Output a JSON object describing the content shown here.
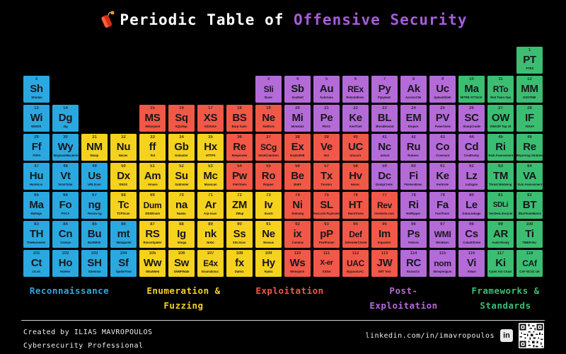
{
  "title": {
    "prefix": "Periodic Table of ",
    "accent": "Offensive Security",
    "icon": "firecracker-icon"
  },
  "colors": {
    "background": "#000000",
    "tile_text": "#17171c",
    "title_text": "#ffffff",
    "title_accent": "#a65cd9",
    "recon": "#2aa9e0",
    "enum": "#f5d21e",
    "exploit": "#f25847",
    "postex": "#b46bd8",
    "frameworks": "#3bbe72",
    "footer_text": "#efefef",
    "rule": "#cfcfcf"
  },
  "categories": [
    {
      "key": "recon",
      "label": "Reconnaissance",
      "lines": [
        "Reconnaissance"
      ]
    },
    {
      "key": "enum",
      "label": "Enumeration & Fuzzing",
      "lines": [
        "Enumeration &",
        "Fuzzing"
      ]
    },
    {
      "key": "exploit",
      "label": "Exploitation",
      "lines": [
        "Exploitation"
      ]
    },
    {
      "key": "postex",
      "label": "Post-Exploitation",
      "lines": [
        "Post-",
        "Exploitation"
      ]
    },
    {
      "key": "frameworks",
      "label": "Frameworks & Standards",
      "lines": [
        "Frameworks &",
        "Standards"
      ]
    }
  ],
  "elements": [
    {
      "n": 1,
      "sym": "PT",
      "name": "PTES",
      "cat": "frameworks",
      "row": 1,
      "col": 18
    },
    {
      "n": 2,
      "sym": "Sh",
      "name": "Shodan",
      "cat": "recon",
      "row": 2,
      "col": 1
    },
    {
      "n": 3,
      "sym": "Sli",
      "name": "Sliver",
      "cat": "postex",
      "row": 2,
      "col": 9
    },
    {
      "n": 4,
      "sym": "Sb",
      "name": "Seatbelt",
      "cat": "postex",
      "row": 2,
      "col": 10
    },
    {
      "n": 5,
      "sym": "Au",
      "name": "Autoruns",
      "cat": "postex",
      "row": 2,
      "col": 11
    },
    {
      "n": 6,
      "sym": "REx",
      "name": "RemoteExec",
      "cat": "postex",
      "row": 2,
      "col": 12
    },
    {
      "n": 7,
      "sym": "Py",
      "name": "Pypykatz",
      "cat": "postex",
      "row": 2,
      "col": 13
    },
    {
      "n": 8,
      "sym": "Ak",
      "name": "AccessChk",
      "cat": "postex",
      "row": 2,
      "col": 14
    },
    {
      "n": 9,
      "sym": "Uc",
      "name": "UploadShell",
      "cat": "postex",
      "row": 2,
      "col": 15
    },
    {
      "n": 10,
      "sym": "Ma",
      "name": "MITRE ATT&CK",
      "cat": "frameworks",
      "row": 2,
      "col": 16
    },
    {
      "n": 11,
      "sym": "RTo",
      "name": "Red Team Ops",
      "cat": "frameworks",
      "row": 2,
      "col": 17
    },
    {
      "n": 12,
      "sym": "MM",
      "name": "OSSTMM",
      "cat": "frameworks",
      "row": 2,
      "col": 18
    },
    {
      "n": 13,
      "sym": "Wi",
      "name": "WHOIS",
      "cat": "recon",
      "row": 3,
      "col": 1
    },
    {
      "n": 14,
      "sym": "Dg",
      "name": "dig",
      "cat": "recon",
      "row": 3,
      "col": 2
    },
    {
      "n": 15,
      "sym": "MS",
      "name": "Metasploit",
      "cat": "exploit",
      "row": 3,
      "col": 5
    },
    {
      "n": 16,
      "sym": "Sq",
      "name": "SQLMap",
      "cat": "exploit",
      "row": 3,
      "col": 6
    },
    {
      "n": 17,
      "sym": "XS",
      "name": "XSStrike",
      "cat": "exploit",
      "row": 3,
      "col": 7
    },
    {
      "n": 18,
      "sym": "BS",
      "name": "Burp Suite",
      "cat": "exploit",
      "row": 3,
      "col": 8
    },
    {
      "n": 19,
      "sym": "Ne",
      "name": "NetExec",
      "cat": "exploit",
      "row": 3,
      "col": 9
    },
    {
      "n": 20,
      "sym": "Mi",
      "name": "Mimikatz",
      "cat": "postex",
      "row": 3,
      "col": 10
    },
    {
      "n": 21,
      "sym": "Pe",
      "name": "PEAS",
      "cat": "postex",
      "row": 3,
      "col": 11
    },
    {
      "n": 22,
      "sym": "Ke",
      "name": "KeeThief",
      "cat": "postex",
      "row": 3,
      "col": 12
    },
    {
      "n": 23,
      "sym": "BL",
      "name": "BloodHound",
      "cat": "postex",
      "row": 3,
      "col": 13
    },
    {
      "n": 24,
      "sym": "EM",
      "name": "Empire",
      "cat": "postex",
      "row": 3,
      "col": 14
    },
    {
      "n": 25,
      "sym": "PV",
      "name": "PowerView",
      "cat": "postex",
      "row": 3,
      "col": 15
    },
    {
      "n": 26,
      "sym": "SC",
      "name": "SharpCradle",
      "cat": "postex",
      "row": 3,
      "col": 16
    },
    {
      "n": 27,
      "sym": "OW",
      "name": "OWASP Top 10",
      "cat": "frameworks",
      "row": 3,
      "col": 17
    },
    {
      "n": 28,
      "sym": "IF",
      "name": "ISSAF",
      "cat": "frameworks",
      "row": 3,
      "col": 18
    },
    {
      "n": 29,
      "sym": "Ff",
      "name": "FOFA",
      "cat": "recon",
      "row": 4,
      "col": 1
    },
    {
      "n": 30,
      "sym": "Wy",
      "name": "WaybackMachine",
      "cat": "recon",
      "row": 4,
      "col": 2
    },
    {
      "n": 31,
      "sym": "NM",
      "name": "Nmap",
      "cat": "enum",
      "row": 4,
      "col": 3
    },
    {
      "n": 32,
      "sym": "Nu",
      "name": "Nuclei",
      "cat": "enum",
      "row": 4,
      "col": 4
    },
    {
      "n": 33,
      "sym": "ff",
      "name": "ffuf",
      "cat": "enum",
      "row": 4,
      "col": 5
    },
    {
      "n": 34,
      "sym": "Gb",
      "name": "Gobuster",
      "cat": "enum",
      "row": 4,
      "col": 6
    },
    {
      "n": 35,
      "sym": "Hx",
      "name": "HTTPX",
      "cat": "enum",
      "row": 4,
      "col": 7
    },
    {
      "n": 36,
      "sym": "Re",
      "name": "Responder",
      "cat": "exploit",
      "row": 4,
      "col": 8
    },
    {
      "n": 37,
      "sym": "SCg",
      "name": "ShellCodeGen",
      "cat": "exploit",
      "row": 4,
      "col": 9
    },
    {
      "n": 38,
      "sym": "Ex",
      "name": "ExploitDB",
      "cat": "exploit",
      "row": 4,
      "col": 10
    },
    {
      "n": 39,
      "sym": "Ve",
      "name": "Veil",
      "cat": "exploit",
      "row": 4,
      "col": 11
    },
    {
      "n": 40,
      "sym": "UC",
      "name": "Unicorn",
      "cat": "exploit",
      "row": 4,
      "col": 12
    },
    {
      "n": 41,
      "sym": "Nc",
      "name": "netcat",
      "cat": "postex",
      "row": 4,
      "col": 13
    },
    {
      "n": 42,
      "sym": "Ru",
      "name": "Rubeus",
      "cat": "postex",
      "row": 4,
      "col": 14
    },
    {
      "n": 43,
      "sym": "Co",
      "name": "Covenant",
      "cat": "postex",
      "row": 4,
      "col": 15
    },
    {
      "n": 44,
      "sym": "Cd",
      "name": "CredDump",
      "cat": "postex",
      "row": 4,
      "col": 16
    },
    {
      "n": 45,
      "sym": "Ri",
      "name": "Risk Assessment",
      "cat": "frameworks",
      "row": 4,
      "col": 17
    },
    {
      "n": 46,
      "sym": "Re",
      "name": "Reporting Stndrds",
      "cat": "frameworks",
      "row": 4,
      "col": 18
    },
    {
      "n": 47,
      "sym": "Hu",
      "name": "Hunter.io",
      "cat": "recon",
      "row": 5,
      "col": 1
    },
    {
      "n": 48,
      "sym": "Vt",
      "name": "VirusTotal",
      "cat": "recon",
      "row": 5,
      "col": 2
    },
    {
      "n": 49,
      "sym": "Us",
      "name": "URLScan",
      "cat": "recon",
      "row": 5,
      "col": 3
    },
    {
      "n": 50,
      "sym": "Dx",
      "name": "DNSX",
      "cat": "enum",
      "row": 5,
      "col": 4
    },
    {
      "n": 51,
      "sym": "Am",
      "name": "Amass",
      "cat": "enum",
      "row": 5,
      "col": 5
    },
    {
      "n": 52,
      "sym": "Su",
      "name": "Subfinder",
      "cat": "enum",
      "row": 5,
      "col": 6
    },
    {
      "n": 53,
      "sym": "Mc",
      "name": "Masscan",
      "cat": "enum",
      "row": 5,
      "col": 7
    },
    {
      "n": 54,
      "sym": "Pw",
      "name": "PwnTools",
      "cat": "exploit",
      "row": 5,
      "col": 8
    },
    {
      "n": 55,
      "sym": "Ro",
      "name": "Ropper",
      "cat": "exploit",
      "row": 5,
      "col": 9
    },
    {
      "n": 56,
      "sym": "Be",
      "name": "BeEF",
      "cat": "exploit",
      "row": 5,
      "col": 10
    },
    {
      "n": 57,
      "sym": "Tx",
      "name": "Toxssin",
      "cat": "exploit",
      "row": 5,
      "col": 11
    },
    {
      "n": 58,
      "sym": "Hv",
      "name": "Havoc",
      "cat": "exploit",
      "row": 5,
      "col": 12
    },
    {
      "n": 59,
      "sym": "Dc",
      "name": "DumpCreds",
      "cat": "postex",
      "row": 5,
      "col": 13
    },
    {
      "n": 60,
      "sym": "Fi",
      "name": "FilelessExec",
      "cat": "postex",
      "row": 5,
      "col": 14
    },
    {
      "n": 61,
      "sym": "Ke",
      "name": "Kerbrute",
      "cat": "postex",
      "row": 5,
      "col": 15
    },
    {
      "n": 62,
      "sym": "Lz",
      "name": "LaZagne",
      "cat": "postex",
      "row": 5,
      "col": 16
    },
    {
      "n": 63,
      "sym": "TM",
      "name": "Threat Modeling",
      "cat": "frameworks",
      "row": 5,
      "col": 17
    },
    {
      "n": 64,
      "sym": "VA",
      "name": "Vuln Assessment",
      "cat": "frameworks",
      "row": 5,
      "col": 18
    },
    {
      "n": 65,
      "sym": "Ma",
      "name": "Maltego",
      "cat": "recon",
      "row": 6,
      "col": 1
    },
    {
      "n": 66,
      "sym": "Fo",
      "name": "FOCA",
      "cat": "recon",
      "row": 6,
      "col": 2
    },
    {
      "n": 67,
      "sym": "ng",
      "name": "Recon-ng",
      "cat": "recon",
      "row": 6,
      "col": 3
    },
    {
      "n": 68,
      "sym": "Tc",
      "name": "TCPScan",
      "cat": "enum",
      "row": 6,
      "col": 4
    },
    {
      "n": 69,
      "sym": "Dum",
      "name": "DNSEnum",
      "cat": "enum",
      "row": 6,
      "col": 5
    },
    {
      "n": 70,
      "sym": "na",
      "name": "Naabu",
      "cat": "enum",
      "row": 6,
      "col": 6
    },
    {
      "n": 71,
      "sym": "Ar",
      "name": "Arp-scan",
      "cat": "enum",
      "row": 6,
      "col": 7
    },
    {
      "n": 72,
      "sym": "ZM",
      "name": "ZMap",
      "cat": "enum",
      "row": 6,
      "col": 8
    },
    {
      "n": 73,
      "sym": "Iv",
      "name": "Invicti",
      "cat": "enum",
      "row": 6,
      "col": 9
    },
    {
      "n": 74,
      "sym": "Ni",
      "name": "Nishang",
      "cat": "exploit",
      "row": 6,
      "col": 10
    },
    {
      "n": 75,
      "sym": "SL",
      "name": "SecLists Payloads",
      "cat": "exploit",
      "row": 6,
      "col": 11
    },
    {
      "n": 76,
      "sym": "HT",
      "name": "HackTricks",
      "cat": "exploit",
      "row": 6,
      "col": 12
    },
    {
      "n": 77,
      "sym": "Rev",
      "name": "revshells.com",
      "cat": "exploit",
      "row": 6,
      "col": 13
    },
    {
      "n": 78,
      "sym": "Ri",
      "name": "NetRipper",
      "cat": "postex",
      "row": 6,
      "col": 14
    },
    {
      "n": 79,
      "sym": "Fa",
      "name": "FastTrack",
      "cat": "postex",
      "row": 6,
      "col": 15
    },
    {
      "n": 80,
      "sym": "Le",
      "name": "DataLeakage",
      "cat": "postex",
      "row": 6,
      "col": 16
    },
    {
      "n": 81,
      "sym": "SDLi",
      "name": "SecDevLifecycle",
      "cat": "frameworks",
      "row": 6,
      "col": 17
    },
    {
      "n": 82,
      "sym": "BT",
      "name": "BlueTeamMatrix",
      "cat": "frameworks",
      "row": 6,
      "col": 18
    },
    {
      "n": 83,
      "sym": "TH",
      "name": "TheHarvester",
      "cat": "recon",
      "row": 7,
      "col": 1
    },
    {
      "n": 84,
      "sym": "Cn",
      "name": "Censys",
      "cat": "recon",
      "row": 7,
      "col": 2
    },
    {
      "n": 85,
      "sym": "Bu",
      "name": "BuiltWith",
      "cat": "recon",
      "row": 7,
      "col": 3
    },
    {
      "n": 86,
      "sym": "mt",
      "name": "Metagoofil",
      "cat": "recon",
      "row": 7,
      "col": 4
    },
    {
      "n": 87,
      "sym": "RS",
      "name": "ReconSpider",
      "cat": "enum",
      "row": 7,
      "col": 5
    },
    {
      "n": 88,
      "sym": "Ig",
      "name": "Infoga",
      "cat": "enum",
      "row": 7,
      "col": 6
    },
    {
      "n": 89,
      "sym": "nk",
      "name": "Nikto",
      "cat": "enum",
      "row": 7,
      "col": 7
    },
    {
      "n": 90,
      "sym": "Ss",
      "name": "SSLScan",
      "cat": "enum",
      "row": 7,
      "col": 8
    },
    {
      "n": 91,
      "sym": "Ne",
      "name": "Nessus",
      "cat": "enum",
      "row": 7,
      "col": 9
    },
    {
      "n": 92,
      "sym": "ix",
      "name": "Commix",
      "cat": "exploit",
      "row": 7,
      "col": 10
    },
    {
      "n": 93,
      "sym": "pP",
      "name": "PetitPotam",
      "cat": "exploit",
      "row": 7,
      "col": 11
    },
    {
      "n": 94,
      "sym": "Def",
      "name": "DefenderCheck",
      "cat": "exploit",
      "row": 7,
      "col": 12
    },
    {
      "n": 95,
      "sym": "Im",
      "name": "Impacket",
      "cat": "exploit",
      "row": 7,
      "col": 13
    },
    {
      "n": 96,
      "sym": "Ps",
      "name": "PsExec",
      "cat": "postex",
      "row": 7,
      "col": 14
    },
    {
      "n": 97,
      "sym": "WMI",
      "name": "WmiExec",
      "cat": "postex",
      "row": 7,
      "col": 15
    },
    {
      "n": 98,
      "sym": "Cs",
      "name": "CobaltStrike",
      "cat": "postex",
      "row": 7,
      "col": 16
    },
    {
      "n": 99,
      "sym": "AR",
      "name": "Audit Ready",
      "cat": "frameworks",
      "row": 7,
      "col": 17
    },
    {
      "n": 100,
      "sym": "Ti",
      "name": "TIBER-EU",
      "cat": "frameworks",
      "row": 7,
      "col": 18
    },
    {
      "n": 101,
      "sym": "Ct",
      "name": "crt.sh",
      "cat": "recon",
      "row": 8,
      "col": 1
    },
    {
      "n": 102,
      "sym": "Ho",
      "name": "Holehe",
      "cat": "recon",
      "row": 8,
      "col": 2
    },
    {
      "n": 103,
      "sym": "SH",
      "name": "Sherlock",
      "cat": "recon",
      "row": 8,
      "col": 3
    },
    {
      "n": 104,
      "sym": "Sf",
      "name": "SpiderFoot",
      "cat": "recon",
      "row": 8,
      "col": 4
    },
    {
      "n": 105,
      "sym": "Ww",
      "name": "WhatWeb",
      "cat": "enum",
      "row": 8,
      "col": 5
    },
    {
      "n": 106,
      "sym": "Sw",
      "name": "SNMPWalk",
      "cat": "enum",
      "row": 8,
      "col": 6
    },
    {
      "n": 107,
      "sym": "E4x",
      "name": "Enum4linux",
      "cat": "enum",
      "row": 8,
      "col": 7
    },
    {
      "n": 108,
      "sym": "fx",
      "name": "Dalfox",
      "cat": "enum",
      "row": 8,
      "col": 8
    },
    {
      "n": 109,
      "sym": "Hy",
      "name": "Hydra",
      "cat": "enum",
      "row": 8,
      "col": 9
    },
    {
      "n": 110,
      "sym": "Ws",
      "name": "Websploit",
      "cat": "exploit",
      "row": 8,
      "col": 10
    },
    {
      "n": 111,
      "sym": "X-er",
      "name": "XSSer",
      "cat": "exploit",
      "row": 8,
      "col": 11
    },
    {
      "n": 112,
      "sym": "UAC",
      "name": "BypassUAC",
      "cat": "exploit",
      "row": 8,
      "col": 12
    },
    {
      "n": 113,
      "sym": "JW",
      "name": "JWT Tool",
      "cat": "exploit",
      "row": 8,
      "col": 13
    },
    {
      "n": 114,
      "sym": "RC",
      "name": "RunasCs",
      "cat": "postex",
      "row": 8,
      "col": 14
    },
    {
      "n": 115,
      "sym": "nom",
      "name": "Mimipenguin",
      "cat": "postex",
      "row": 8,
      "col": 15
    },
    {
      "n": 116,
      "sym": "Vi",
      "name": "Villain",
      "cat": "postex",
      "row": 8,
      "col": 16
    },
    {
      "n": 117,
      "sym": "Ki",
      "name": "Cyber Kill Chain",
      "cat": "frameworks",
      "row": 8,
      "col": 17
    },
    {
      "n": 118,
      "sym": "CAf",
      "name": "CAF NCSC UK",
      "cat": "frameworks",
      "row": 8,
      "col": 18
    }
  ],
  "footer": {
    "created_by": "Created by ILIAS MAVROPOULOS",
    "subtitle": "Cybersecurity Professional",
    "link": "linkedin.com/in/imavropoulos",
    "linkedin_icon_text": "in"
  }
}
